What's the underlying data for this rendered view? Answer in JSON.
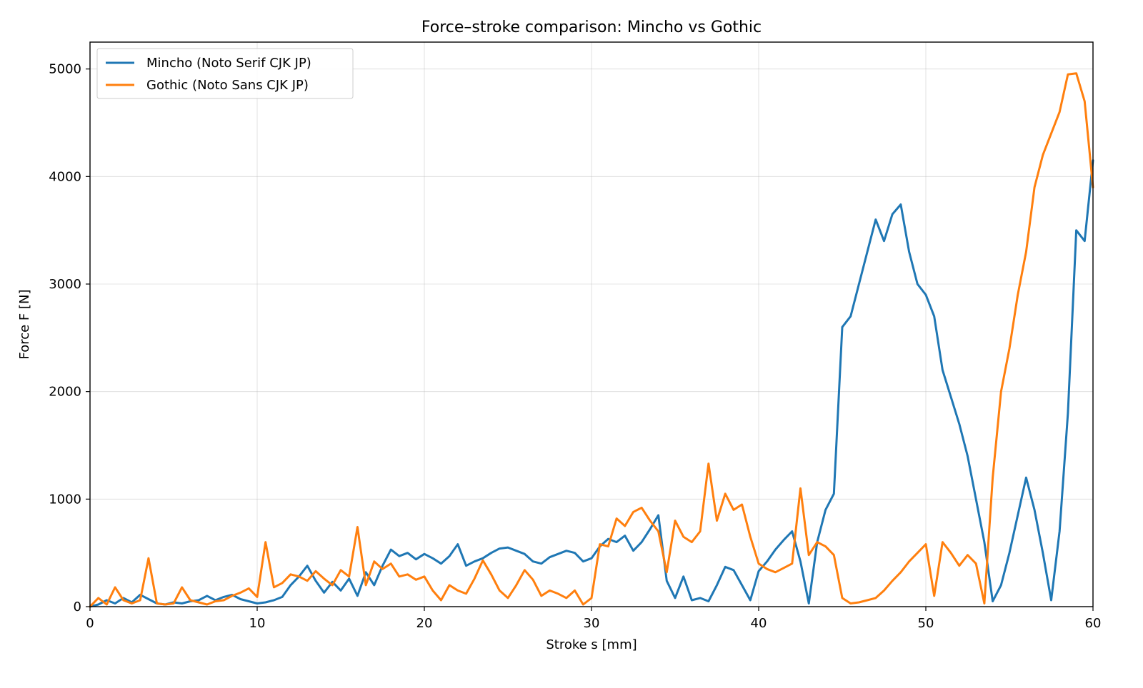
{
  "chart_data": {
    "type": "line",
    "title": "Force–stroke comparison: Mincho vs Gothic",
    "xlabel": "Stroke s [mm]",
    "ylabel": "Force F [N]",
    "xlim": [
      0,
      60
    ],
    "ylim": [
      0,
      5250
    ],
    "xticks": [
      0,
      10,
      20,
      30,
      40,
      50,
      60
    ],
    "yticks": [
      0,
      1000,
      2000,
      3000,
      4000,
      5000
    ],
    "grid": true,
    "legend_position": "upper-left",
    "series": [
      {
        "name": "Mincho (Noto Serif CJK JP)",
        "color": "#1f77b4",
        "points": [
          [
            0.0,
            0
          ],
          [
            0.5,
            20
          ],
          [
            1.0,
            60
          ],
          [
            1.5,
            30
          ],
          [
            2.0,
            80
          ],
          [
            2.5,
            40
          ],
          [
            3.0,
            110
          ],
          [
            3.5,
            70
          ],
          [
            4.0,
            30
          ],
          [
            4.5,
            20
          ],
          [
            5.0,
            40
          ],
          [
            5.5,
            30
          ],
          [
            6.0,
            50
          ],
          [
            6.5,
            60
          ],
          [
            7.0,
            100
          ],
          [
            7.5,
            60
          ],
          [
            8.0,
            90
          ],
          [
            8.5,
            110
          ],
          [
            9.0,
            70
          ],
          [
            9.5,
            50
          ],
          [
            10.0,
            30
          ],
          [
            10.5,
            40
          ],
          [
            11.0,
            60
          ],
          [
            11.5,
            90
          ],
          [
            12.0,
            200
          ],
          [
            12.5,
            280
          ],
          [
            13.0,
            380
          ],
          [
            13.5,
            240
          ],
          [
            14.0,
            130
          ],
          [
            14.5,
            230
          ],
          [
            15.0,
            150
          ],
          [
            15.5,
            260
          ],
          [
            16.0,
            100
          ],
          [
            16.5,
            320
          ],
          [
            17.0,
            200
          ],
          [
            17.5,
            380
          ],
          [
            18.0,
            530
          ],
          [
            18.5,
            470
          ],
          [
            19.0,
            500
          ],
          [
            19.5,
            440
          ],
          [
            20.0,
            490
          ],
          [
            20.5,
            450
          ],
          [
            21.0,
            400
          ],
          [
            21.5,
            470
          ],
          [
            22.0,
            580
          ],
          [
            22.5,
            380
          ],
          [
            23.0,
            420
          ],
          [
            23.5,
            450
          ],
          [
            24.0,
            500
          ],
          [
            24.5,
            540
          ],
          [
            25.0,
            550
          ],
          [
            25.5,
            520
          ],
          [
            26.0,
            490
          ],
          [
            26.5,
            420
          ],
          [
            27.0,
            400
          ],
          [
            27.5,
            460
          ],
          [
            28.0,
            490
          ],
          [
            28.5,
            520
          ],
          [
            29.0,
            500
          ],
          [
            29.5,
            420
          ],
          [
            30.0,
            450
          ],
          [
            30.5,
            560
          ],
          [
            31.0,
            630
          ],
          [
            31.5,
            600
          ],
          [
            32.0,
            660
          ],
          [
            32.5,
            520
          ],
          [
            33.0,
            600
          ],
          [
            33.5,
            720
          ],
          [
            34.0,
            850
          ],
          [
            34.5,
            240
          ],
          [
            35.0,
            80
          ],
          [
            35.5,
            280
          ],
          [
            36.0,
            60
          ],
          [
            36.5,
            80
          ],
          [
            37.0,
            50
          ],
          [
            37.5,
            200
          ],
          [
            38.0,
            370
          ],
          [
            38.5,
            340
          ],
          [
            39.0,
            200
          ],
          [
            39.5,
            60
          ],
          [
            40.0,
            330
          ],
          [
            40.5,
            420
          ],
          [
            41.0,
            530
          ],
          [
            41.5,
            620
          ],
          [
            42.0,
            700
          ],
          [
            42.5,
            420
          ],
          [
            43.0,
            30
          ],
          [
            43.5,
            600
          ],
          [
            44.0,
            900
          ],
          [
            44.5,
            1050
          ],
          [
            45.0,
            2600
          ],
          [
            45.5,
            2700
          ],
          [
            46.0,
            3000
          ],
          [
            46.5,
            3300
          ],
          [
            47.0,
            3600
          ],
          [
            47.5,
            3400
          ],
          [
            48.0,
            3650
          ],
          [
            48.5,
            3740
          ],
          [
            49.0,
            3300
          ],
          [
            49.5,
            3000
          ],
          [
            50.0,
            2900
          ],
          [
            50.5,
            2700
          ],
          [
            51.0,
            2200
          ],
          [
            51.5,
            1950
          ],
          [
            52.0,
            1700
          ],
          [
            52.5,
            1400
          ],
          [
            53.0,
            1000
          ],
          [
            53.5,
            600
          ],
          [
            54.0,
            50
          ],
          [
            54.5,
            200
          ],
          [
            55.0,
            500
          ],
          [
            55.5,
            850
          ],
          [
            56.0,
            1200
          ],
          [
            56.5,
            900
          ],
          [
            57.0,
            500
          ],
          [
            57.5,
            60
          ],
          [
            58.0,
            700
          ],
          [
            58.5,
            1800
          ],
          [
            59.0,
            3500
          ],
          [
            59.5,
            3400
          ],
          [
            60.0,
            4150
          ]
        ]
      },
      {
        "name": "Gothic (Noto Sans CJK JP)",
        "color": "#ff7f0e",
        "points": [
          [
            0.0,
            0
          ],
          [
            0.5,
            80
          ],
          [
            1.0,
            20
          ],
          [
            1.5,
            180
          ],
          [
            2.0,
            60
          ],
          [
            2.5,
            30
          ],
          [
            3.0,
            60
          ],
          [
            3.5,
            450
          ],
          [
            4.0,
            30
          ],
          [
            4.5,
            20
          ],
          [
            5.0,
            30
          ],
          [
            5.5,
            180
          ],
          [
            6.0,
            60
          ],
          [
            6.5,
            40
          ],
          [
            7.0,
            20
          ],
          [
            7.5,
            50
          ],
          [
            8.0,
            60
          ],
          [
            8.5,
            100
          ],
          [
            9.0,
            130
          ],
          [
            9.5,
            170
          ],
          [
            10.0,
            90
          ],
          [
            10.5,
            600
          ],
          [
            11.0,
            180
          ],
          [
            11.5,
            220
          ],
          [
            12.0,
            300
          ],
          [
            12.5,
            280
          ],
          [
            13.0,
            240
          ],
          [
            13.5,
            330
          ],
          [
            14.0,
            260
          ],
          [
            14.5,
            200
          ],
          [
            15.0,
            340
          ],
          [
            15.5,
            280
          ],
          [
            16.0,
            740
          ],
          [
            16.5,
            200
          ],
          [
            17.0,
            420
          ],
          [
            17.5,
            350
          ],
          [
            18.0,
            400
          ],
          [
            18.5,
            280
          ],
          [
            19.0,
            300
          ],
          [
            19.5,
            250
          ],
          [
            20.0,
            280
          ],
          [
            20.5,
            150
          ],
          [
            21.0,
            60
          ],
          [
            21.5,
            200
          ],
          [
            22.0,
            150
          ],
          [
            22.5,
            120
          ],
          [
            23.0,
            260
          ],
          [
            23.5,
            430
          ],
          [
            24.0,
            300
          ],
          [
            24.5,
            150
          ],
          [
            25.0,
            80
          ],
          [
            25.5,
            200
          ],
          [
            26.0,
            340
          ],
          [
            26.5,
            250
          ],
          [
            27.0,
            100
          ],
          [
            27.5,
            150
          ],
          [
            28.0,
            120
          ],
          [
            28.5,
            80
          ],
          [
            29.0,
            150
          ],
          [
            29.5,
            20
          ],
          [
            30.0,
            80
          ],
          [
            30.5,
            580
          ],
          [
            31.0,
            560
          ],
          [
            31.5,
            820
          ],
          [
            32.0,
            750
          ],
          [
            32.5,
            880
          ],
          [
            33.0,
            920
          ],
          [
            33.5,
            800
          ],
          [
            34.0,
            700
          ],
          [
            34.5,
            320
          ],
          [
            35.0,
            800
          ],
          [
            35.5,
            650
          ],
          [
            36.0,
            600
          ],
          [
            36.5,
            700
          ],
          [
            37.0,
            1330
          ],
          [
            37.5,
            800
          ],
          [
            38.0,
            1050
          ],
          [
            38.5,
            900
          ],
          [
            39.0,
            950
          ],
          [
            39.5,
            650
          ],
          [
            40.0,
            400
          ],
          [
            40.5,
            350
          ],
          [
            41.0,
            320
          ],
          [
            41.5,
            360
          ],
          [
            42.0,
            400
          ],
          [
            42.5,
            1100
          ],
          [
            43.0,
            480
          ],
          [
            43.5,
            600
          ],
          [
            44.0,
            560
          ],
          [
            44.5,
            480
          ],
          [
            45.0,
            80
          ],
          [
            45.5,
            30
          ],
          [
            46.0,
            40
          ],
          [
            46.5,
            60
          ],
          [
            47.0,
            80
          ],
          [
            47.5,
            150
          ],
          [
            48.0,
            240
          ],
          [
            48.5,
            320
          ],
          [
            49.0,
            420
          ],
          [
            49.5,
            500
          ],
          [
            50.0,
            580
          ],
          [
            50.5,
            100
          ],
          [
            51.0,
            600
          ],
          [
            51.5,
            500
          ],
          [
            52.0,
            380
          ],
          [
            52.5,
            480
          ],
          [
            53.0,
            400
          ],
          [
            53.5,
            30
          ],
          [
            54.0,
            1200
          ],
          [
            54.5,
            2000
          ],
          [
            55.0,
            2400
          ],
          [
            55.5,
            2900
          ],
          [
            56.0,
            3300
          ],
          [
            56.5,
            3900
          ],
          [
            57.0,
            4200
          ],
          [
            57.5,
            4400
          ],
          [
            58.0,
            4600
          ],
          [
            58.5,
            4950
          ],
          [
            59.0,
            4960
          ],
          [
            59.5,
            4700
          ],
          [
            60.0,
            3900
          ]
        ]
      }
    ]
  }
}
